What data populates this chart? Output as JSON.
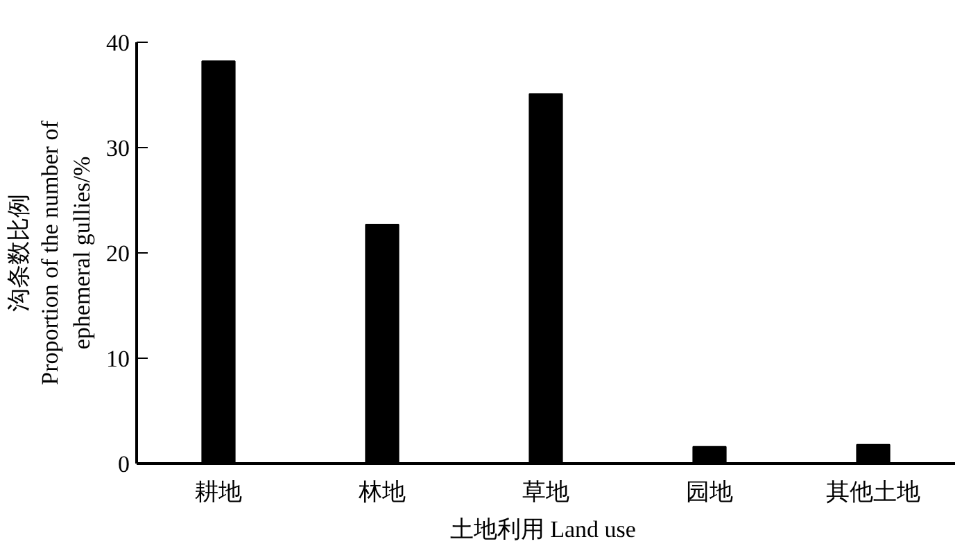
{
  "chart_data": {
    "type": "bar",
    "categories": [
      "耕地",
      "林地",
      "草地",
      "园地",
      "其他土地"
    ],
    "values": [
      38.2,
      22.7,
      35.1,
      1.6,
      1.8
    ],
    "color": "#000000",
    "ylim": [
      0,
      40
    ],
    "yticks": [
      0,
      10,
      20,
      30,
      40
    ],
    "xlabel": "土地利用  Land use",
    "ylabel": "沟条数比例\nProportion of the number of\nephemeral gullies/%",
    "grid": false
  }
}
